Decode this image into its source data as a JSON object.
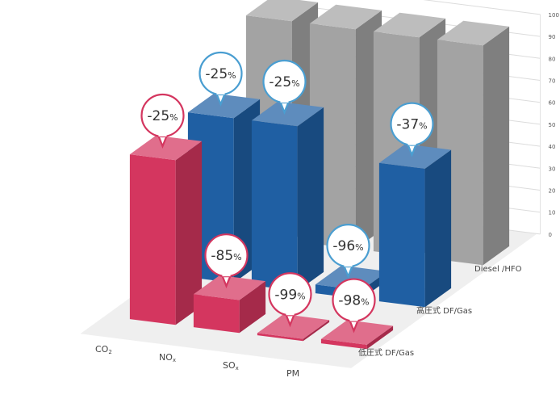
{
  "chart_data": {
    "type": "bar",
    "subtype": "3d-grouped",
    "categories": [
      "CO2",
      "NOx",
      "SOx",
      "PM"
    ],
    "category_labels": [
      {
        "main": "CO",
        "sub": "2"
      },
      {
        "main": "NO",
        "sub": "x"
      },
      {
        "main": "SO",
        "sub": "x"
      },
      {
        "main": "PM",
        "sub": ""
      }
    ],
    "series": [
      {
        "name": "Diesel /HFO",
        "color": "#a3a3a3",
        "values": [
          100,
          100,
          100,
          100
        ]
      },
      {
        "name": "高圧式 DF/Gas",
        "color": "#1f5fa3",
        "values": [
          75,
          75,
          4,
          63
        ],
        "labels": [
          "-25",
          "-25",
          "-96",
          "-37"
        ],
        "bubble_color": "#4a9ed1"
      },
      {
        "name": "低圧式 DF/Gas",
        "color": "#d4365f",
        "values": [
          75,
          15,
          1,
          2
        ],
        "labels": [
          "-25",
          "-85",
          "-99",
          "-98"
        ],
        "bubble_color": "#d4365f"
      }
    ],
    "label_unit": "%",
    "z_ticks": [
      "100",
      "90",
      "80",
      "70",
      "60",
      "50",
      "40",
      "30",
      "20",
      "10",
      "0"
    ],
    "ylim": [
      0,
      100
    ],
    "grid": true,
    "legend": "right, as depth-axis labels"
  }
}
